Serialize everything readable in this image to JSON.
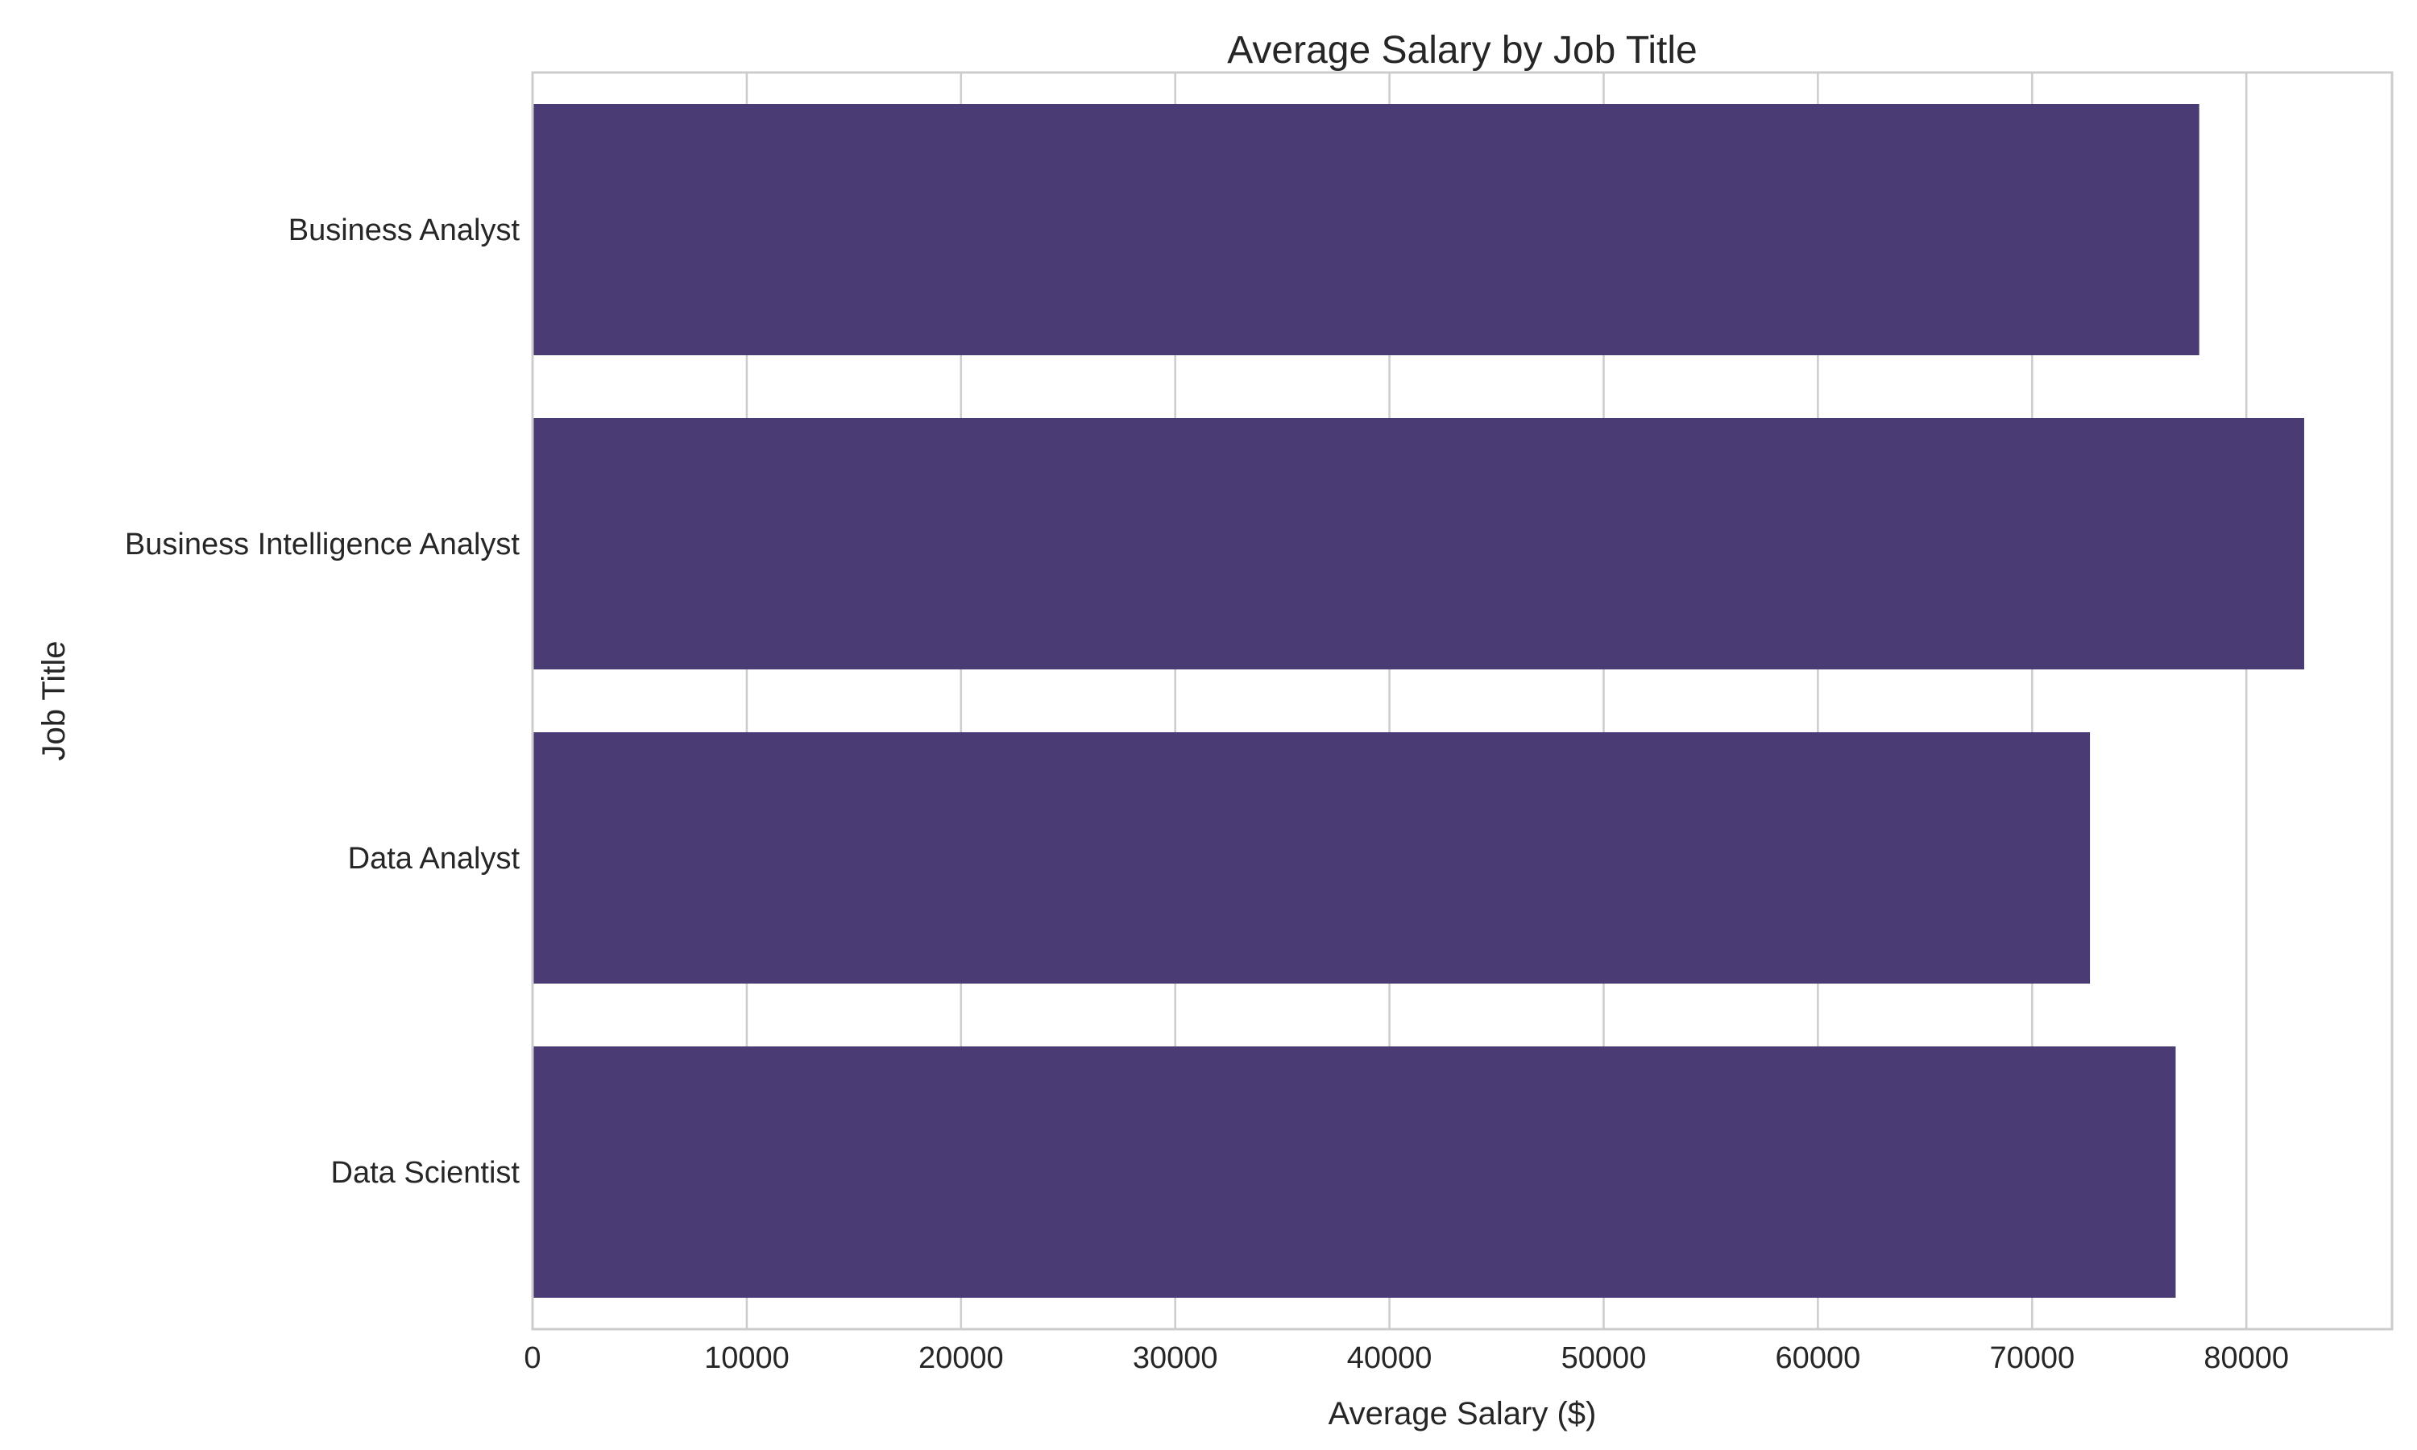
{
  "chart_data": {
    "type": "bar",
    "orientation": "horizontal",
    "title": "Average Salary by Job Title",
    "xlabel": "Average Salary ($)",
    "ylabel": "Job Title",
    "categories": [
      "Business Analyst",
      "Business Intelligence Analyst",
      "Data Analyst",
      "Data Scientist"
    ],
    "values": [
      77800,
      82700,
      72700,
      76700
    ],
    "xlim": [
      0,
      86800
    ],
    "xticks": [
      0,
      10000,
      20000,
      30000,
      40000,
      50000,
      60000,
      70000,
      80000
    ],
    "grid": true,
    "legend": "none",
    "bar_color": "#4a3b74",
    "grid_color": "#cccccc",
    "text_color": "#262626"
  }
}
